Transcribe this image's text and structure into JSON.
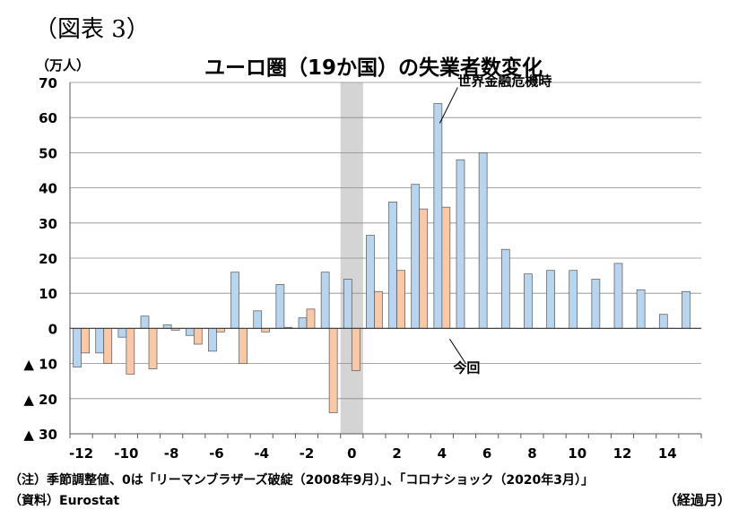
{
  "figure_label": "（図表 3）",
  "unit_label": "（万人）",
  "x_unit_label": "（経過月）",
  "note": "（注）季節調整値、0は「リーマンブラザーズ破綻（2008年9月）」、「コロナショック（2020年3月）」",
  "source": "（資料）Eurostat",
  "chart_data": {
    "type": "bar",
    "title": "ユーロ圏（19か国）の失業者数変化",
    "xlabel": "経過月",
    "ylabel": "万人",
    "ylim": [
      -30,
      70
    ],
    "y_ticks": [
      70,
      60,
      50,
      40,
      30,
      20,
      10,
      0,
      -10,
      -20,
      -30
    ],
    "y_tick_labels": [
      "70",
      "60",
      "50",
      "40",
      "30",
      "20",
      "10",
      "0",
      "▲ 10",
      "▲ 20",
      "▲ 30"
    ],
    "x": [
      -12,
      -11,
      -10,
      -9,
      -8,
      -7,
      -6,
      -5,
      -4,
      -3,
      -2,
      -1,
      0,
      1,
      2,
      3,
      4,
      5,
      6,
      7,
      8,
      9,
      10,
      11,
      12,
      13,
      14,
      15
    ],
    "x_tick_labels": [
      "-12",
      "-10",
      "-8",
      "-6",
      "-4",
      "-2",
      "0",
      "2",
      "4",
      "6",
      "8",
      "10",
      "12",
      "14"
    ],
    "x_tick_values": [
      -12,
      -10,
      -8,
      -6,
      -4,
      -2,
      0,
      2,
      4,
      6,
      8,
      10,
      12,
      14
    ],
    "highlight_x": 0,
    "grid": true,
    "series": [
      {
        "color": "#b8d4ee",
        "values": [
          -11,
          -7,
          -2.5,
          3.5,
          1,
          -2,
          -6.5,
          16,
          5,
          12.5,
          3,
          16,
          14,
          26.5,
          36,
          41,
          64,
          48,
          50,
          22.5,
          15.5,
          16.5,
          16.5,
          14,
          18.5,
          11,
          4,
          10.5
        ]
      },
      {
        "color": "#f8c9a9",
        "values": [
          -7,
          -10,
          -13,
          -11.5,
          -0.5,
          -4.5,
          -1,
          -10,
          -1,
          0.3,
          5.5,
          -24,
          -12,
          10.5,
          16.5,
          34,
          34.5,
          null,
          null,
          null,
          null,
          null,
          null,
          null,
          null,
          null,
          null,
          null
        ]
      }
    ],
    "annotations": [
      {
        "text": "世界金融危機時",
        "series": 0,
        "x": 4
      },
      {
        "text": "今回",
        "series": 1,
        "x": 4
      }
    ]
  }
}
